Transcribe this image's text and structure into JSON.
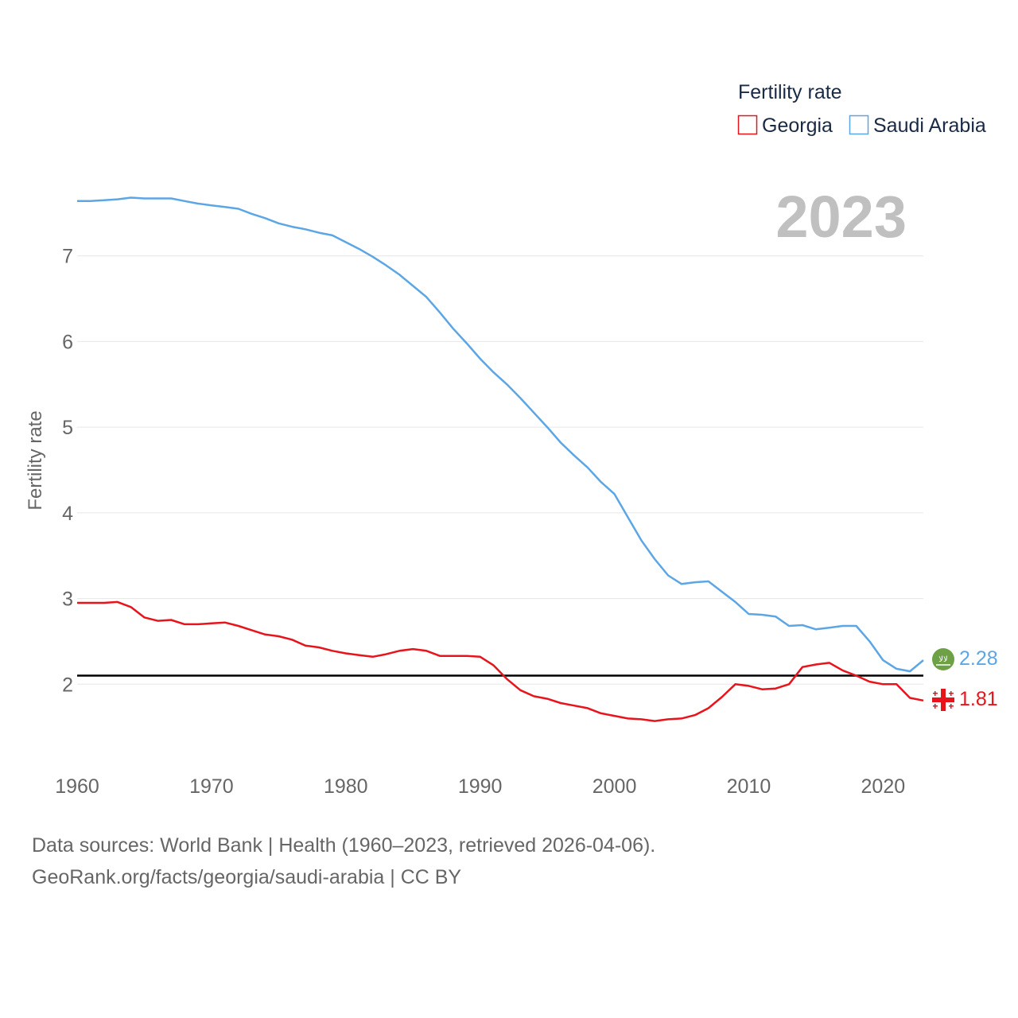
{
  "legend": {
    "title": "Fertility rate",
    "items": [
      {
        "name": "Georgia",
        "color": "#e8141c"
      },
      {
        "name": "Saudi Arabia",
        "color": "#5da6e5"
      }
    ]
  },
  "year_watermark": "2023",
  "end_labels": {
    "georgia": "1.81",
    "saudi_arabia": "2.28"
  },
  "flags": {
    "georgia": "georgia-flag-icon",
    "saudi_arabia": "saudi-arabia-flag-icon"
  },
  "footer": {
    "line1": "Data sources: World Bank | Health (1960–2023, retrieved 2026-04-06).",
    "line2": "GeoRank.org/facts/georgia/saudi-arabia | CC BY"
  },
  "colors": {
    "georgia": "#e8141c",
    "saudi_arabia": "#5da6e5",
    "grid": "#e6e6e6",
    "axis_text": "#666666",
    "reference_line": "#000000",
    "watermark": "#c0c0c0",
    "legend_text": "#1a2a44",
    "saudi_flag_bg": "#6ea046"
  },
  "chart_data": {
    "type": "line",
    "title": "Fertility rate",
    "xlabel": "",
    "ylabel": "Fertility rate",
    "xlim": [
      1960,
      2023
    ],
    "ylim": [
      1.0,
      8.0
    ],
    "x_ticks": [
      1960,
      1970,
      1980,
      1990,
      2000,
      2010,
      2020
    ],
    "y_ticks": [
      2,
      3,
      4,
      5,
      6,
      7
    ],
    "reference_line": 2.1,
    "x": [
      1960,
      1961,
      1962,
      1963,
      1964,
      1965,
      1966,
      1967,
      1968,
      1969,
      1970,
      1971,
      1972,
      1973,
      1974,
      1975,
      1976,
      1977,
      1978,
      1979,
      1980,
      1981,
      1982,
      1983,
      1984,
      1985,
      1986,
      1987,
      1988,
      1989,
      1990,
      1991,
      1992,
      1993,
      1994,
      1995,
      1996,
      1997,
      1998,
      1999,
      2000,
      2001,
      2002,
      2003,
      2004,
      2005,
      2006,
      2007,
      2008,
      2009,
      2010,
      2011,
      2012,
      2013,
      2014,
      2015,
      2016,
      2017,
      2018,
      2019,
      2020,
      2021,
      2022,
      2023
    ],
    "series": [
      {
        "name": "Georgia",
        "values": [
          2.95,
          2.95,
          2.95,
          2.96,
          2.9,
          2.78,
          2.74,
          2.75,
          2.7,
          2.7,
          2.71,
          2.72,
          2.68,
          2.63,
          2.58,
          2.56,
          2.52,
          2.45,
          2.43,
          2.39,
          2.36,
          2.34,
          2.32,
          2.35,
          2.39,
          2.41,
          2.39,
          2.33,
          2.33,
          2.33,
          2.32,
          2.22,
          2.06,
          1.93,
          1.86,
          1.83,
          1.78,
          1.75,
          1.72,
          1.66,
          1.63,
          1.6,
          1.59,
          1.57,
          1.59,
          1.6,
          1.64,
          1.72,
          1.85,
          2.0,
          1.98,
          1.94,
          1.95,
          2.0,
          2.2,
          2.23,
          2.25,
          2.16,
          2.1,
          2.03,
          2.0,
          2.0,
          1.84,
          1.81
        ]
      },
      {
        "name": "Saudi Arabia",
        "values": [
          7.64,
          7.64,
          7.65,
          7.66,
          7.68,
          7.67,
          7.67,
          7.67,
          7.64,
          7.61,
          7.59,
          7.57,
          7.55,
          7.49,
          7.44,
          7.38,
          7.34,
          7.31,
          7.27,
          7.24,
          7.16,
          7.08,
          6.99,
          6.89,
          6.78,
          6.65,
          6.52,
          6.34,
          6.15,
          5.98,
          5.8,
          5.64,
          5.5,
          5.34,
          5.17,
          5.0,
          4.82,
          4.67,
          4.53,
          4.36,
          4.22,
          3.95,
          3.68,
          3.46,
          3.27,
          3.17,
          3.19,
          3.2,
          3.08,
          2.96,
          2.82,
          2.81,
          2.79,
          2.68,
          2.69,
          2.64,
          2.66,
          2.68,
          2.68,
          2.5,
          2.28,
          2.18,
          2.15,
          2.28
        ]
      }
    ]
  }
}
